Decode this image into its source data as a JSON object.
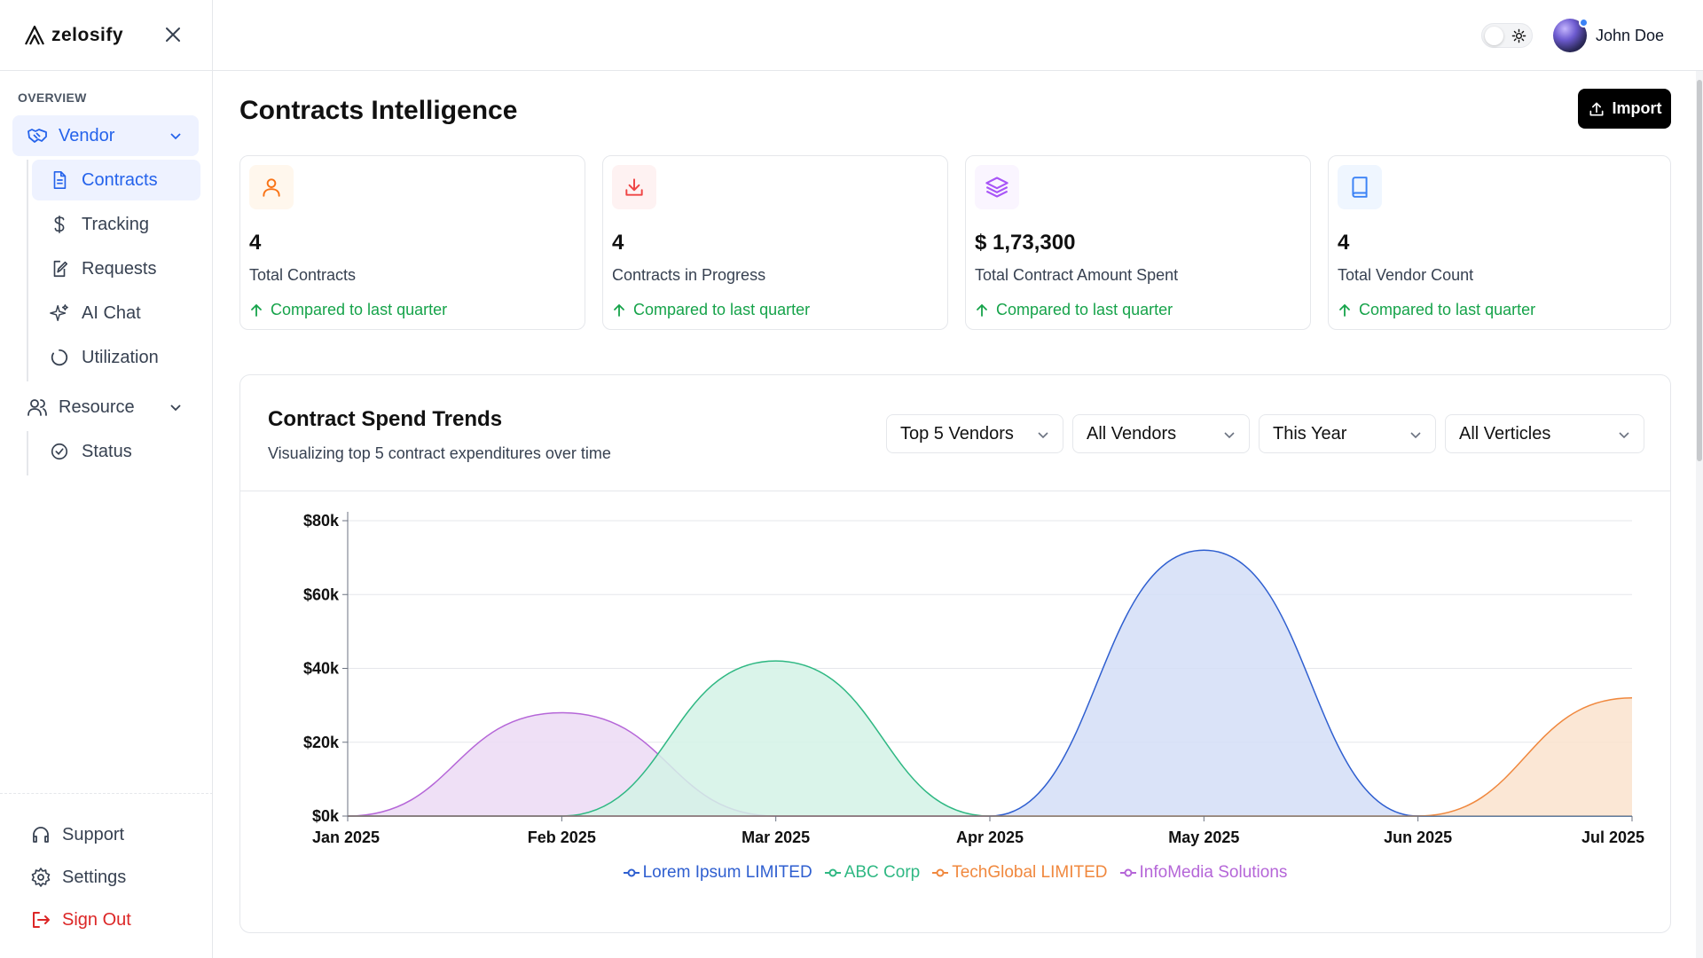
{
  "app": {
    "brand": "zelosify"
  },
  "sidebar": {
    "section": "OVERVIEW",
    "vendor_label": "Vendor",
    "vendor_items": [
      {
        "label": "Contracts",
        "icon": "document-icon"
      },
      {
        "label": "Tracking",
        "icon": "dollar-icon"
      },
      {
        "label": "Requests",
        "icon": "edit-document-icon"
      },
      {
        "label": "AI Chat",
        "icon": "sparkles-icon"
      },
      {
        "label": "Utilization",
        "icon": "loader-circle-icon"
      }
    ],
    "resource_label": "Resource",
    "resource_items": [
      {
        "label": "Status",
        "icon": "check-circle-icon"
      }
    ],
    "bottom": {
      "support": "Support",
      "settings": "Settings",
      "signout": "Sign Out"
    }
  },
  "header": {
    "user_name": "John Doe"
  },
  "main": {
    "title": "Contracts Intelligence",
    "import_label": "Import",
    "stats": [
      {
        "value": "4",
        "label": "Total Contracts",
        "trend": "Compared to last quarter",
        "icon": "user-icon",
        "color": "#f97316",
        "bg": "#fff7ed"
      },
      {
        "value": "4",
        "label": "Contracts in Progress",
        "trend": "Compared to last quarter",
        "icon": "download-icon",
        "color": "#ef4444",
        "bg": "#fef2f2"
      },
      {
        "value": "$ 1,73,300",
        "label": "Total Contract Amount Spent",
        "trend": "Compared to last quarter",
        "icon": "layers-icon",
        "color": "#a855f7",
        "bg": "#faf5ff"
      },
      {
        "value": "4",
        "label": "Total Vendor Count",
        "trend": "Compared to last quarter",
        "icon": "book-icon",
        "color": "#3b82f6",
        "bg": "#eff6ff"
      }
    ],
    "chart_card": {
      "title": "Contract Spend Trends",
      "subtitle": "Visualizing top 5 contract expenditures over time",
      "filters": [
        "Top 5 Vendors",
        "All Vendors",
        "This Year",
        "All Verticles"
      ]
    }
  },
  "chart_data": {
    "type": "area",
    "title": "Contract Spend Trends",
    "x": [
      "Jan 2025",
      "Feb 2025",
      "Mar 2025",
      "Apr 2025",
      "May 2025",
      "Jun 2025",
      "Jul 2025"
    ],
    "y_ticks": [
      "$0k",
      "$20k",
      "$40k",
      "$60k",
      "$80k"
    ],
    "ylim": [
      0,
      80000
    ],
    "grid": true,
    "legend_position": "bottom",
    "series": [
      {
        "name": "Lorem Ipsum LIMITED",
        "color": "#2f5fd0",
        "fill": "#d4def7",
        "values": [
          0,
          0,
          0,
          0,
          72000,
          0,
          0
        ]
      },
      {
        "name": "ABC Corp",
        "color": "#2fb883",
        "fill": "#d4f2e6",
        "values": [
          0,
          0,
          42000,
          0,
          0,
          0,
          0
        ]
      },
      {
        "name": "TechGlobal LIMITED",
        "color": "#f0883e",
        "fill": "#fae3ce",
        "values": [
          0,
          0,
          0,
          0,
          0,
          0,
          32000
        ]
      },
      {
        "name": "InfoMedia Solutions",
        "color": "#b566d8",
        "fill": "#ecdaf5",
        "values": [
          0,
          28000,
          0,
          0,
          0,
          0,
          0
        ]
      }
    ]
  }
}
